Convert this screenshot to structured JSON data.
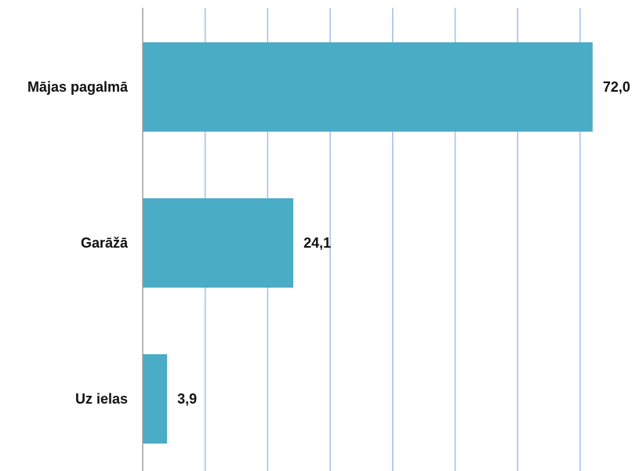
{
  "chart_data": {
    "type": "bar",
    "orientation": "horizontal",
    "categories": [
      "Mājas pagalmā",
      "Garāžā",
      "Uz ielas"
    ],
    "values": [
      72.0,
      24.1,
      3.9
    ],
    "value_labels": [
      "72,0",
      "24,1",
      "3,9"
    ],
    "xlim": [
      0,
      70
    ],
    "x_gridlines": [
      10,
      20,
      30,
      40,
      50,
      60,
      70
    ],
    "grid": true,
    "legend": "none",
    "title": "",
    "xlabel": "",
    "ylabel": ""
  },
  "colors": {
    "bar": "#4bacc6",
    "grid": "#a9c1ea",
    "axis": "#9a9a9a",
    "text": "#111111"
  }
}
